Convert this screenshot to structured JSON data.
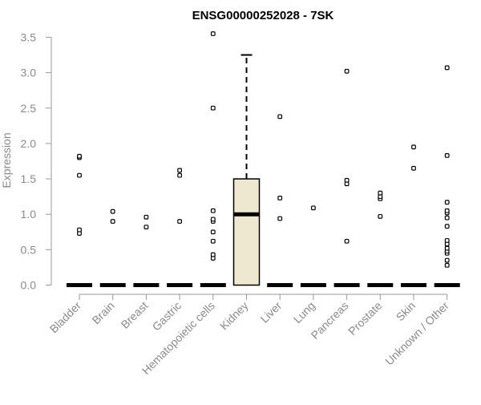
{
  "chart_data": {
    "type": "box",
    "title": "ENSG00000252028 - 7SK",
    "ylabel": "Expression",
    "xlabel": "",
    "ylim": [
      0,
      3.5
    ],
    "yticks": [
      "0.0",
      "0.5",
      "1.0",
      "1.5",
      "2.0",
      "2.5",
      "3.0",
      "3.5"
    ],
    "categories": [
      "Bladder",
      "Brain",
      "Breast",
      "Gastric",
      "Hematopoietic cells",
      "Kidney",
      "Liver",
      "Lung",
      "Pancreas",
      "Prostate",
      "Skin",
      "Unknown / Other"
    ],
    "boxes": [
      {
        "category": "Bladder",
        "q1": 0,
        "median": 0,
        "q3": 0,
        "whisker_low": 0,
        "whisker_high": 0,
        "outliers": [
          0.73,
          0.78,
          1.55,
          1.8,
          1.82
        ]
      },
      {
        "category": "Brain",
        "q1": 0,
        "median": 0,
        "q3": 0,
        "whisker_low": 0,
        "whisker_high": 0,
        "outliers": [
          0.9,
          1.04
        ]
      },
      {
        "category": "Breast",
        "q1": 0,
        "median": 0,
        "q3": 0,
        "whisker_low": 0,
        "whisker_high": 0,
        "outliers": [
          0.82,
          0.96
        ]
      },
      {
        "category": "Gastric",
        "q1": 0,
        "median": 0,
        "q3": 0,
        "whisker_low": 0,
        "whisker_high": 0,
        "outliers": [
          0.9,
          1.55,
          1.62
        ]
      },
      {
        "category": "Hematopoietic cells",
        "q1": 0,
        "median": 0,
        "q3": 0,
        "whisker_low": 0,
        "whisker_high": 0,
        "outliers": [
          0.38,
          0.43,
          0.62,
          0.75,
          0.9,
          0.93,
          1.05,
          2.5,
          3.55
        ]
      },
      {
        "category": "Kidney",
        "q1": 0,
        "median": 1.0,
        "q3": 1.5,
        "whisker_low": 0,
        "whisker_high": 3.25,
        "outliers": []
      },
      {
        "category": "Liver",
        "q1": 0,
        "median": 0,
        "q3": 0,
        "whisker_low": 0,
        "whisker_high": 0,
        "outliers": [
          0.94,
          1.23,
          2.38
        ]
      },
      {
        "category": "Lung",
        "q1": 0,
        "median": 0,
        "q3": 0,
        "whisker_low": 0,
        "whisker_high": 0,
        "outliers": [
          1.09
        ]
      },
      {
        "category": "Pancreas",
        "q1": 0,
        "median": 0,
        "q3": 0,
        "whisker_low": 0,
        "whisker_high": 0,
        "outliers": [
          0.62,
          1.43,
          1.48,
          3.02
        ]
      },
      {
        "category": "Prostate",
        "q1": 0,
        "median": 0,
        "q3": 0,
        "whisker_low": 0,
        "whisker_high": 0,
        "outliers": [
          0.97,
          1.22,
          1.25,
          1.3
        ]
      },
      {
        "category": "Skin",
        "q1": 0,
        "median": 0,
        "q3": 0,
        "whisker_low": 0,
        "whisker_high": 0,
        "outliers": [
          1.65,
          1.95
        ]
      },
      {
        "category": "Unknown / Other",
        "q1": 0,
        "median": 0,
        "q3": 0,
        "whisker_low": 0,
        "whisker_high": 0,
        "outliers": [
          0.28,
          0.35,
          0.45,
          0.48,
          0.52,
          0.58,
          0.63,
          0.83,
          0.95,
          1.02,
          1.05,
          1.17,
          1.83,
          3.07
        ]
      }
    ],
    "colors": {
      "box_fill": "#ede8cf",
      "box_stroke": "#000000",
      "axis": "#999999",
      "tick_label": "#8a8a8a",
      "title": "#000000"
    },
    "grid": false,
    "legend": "none"
  }
}
